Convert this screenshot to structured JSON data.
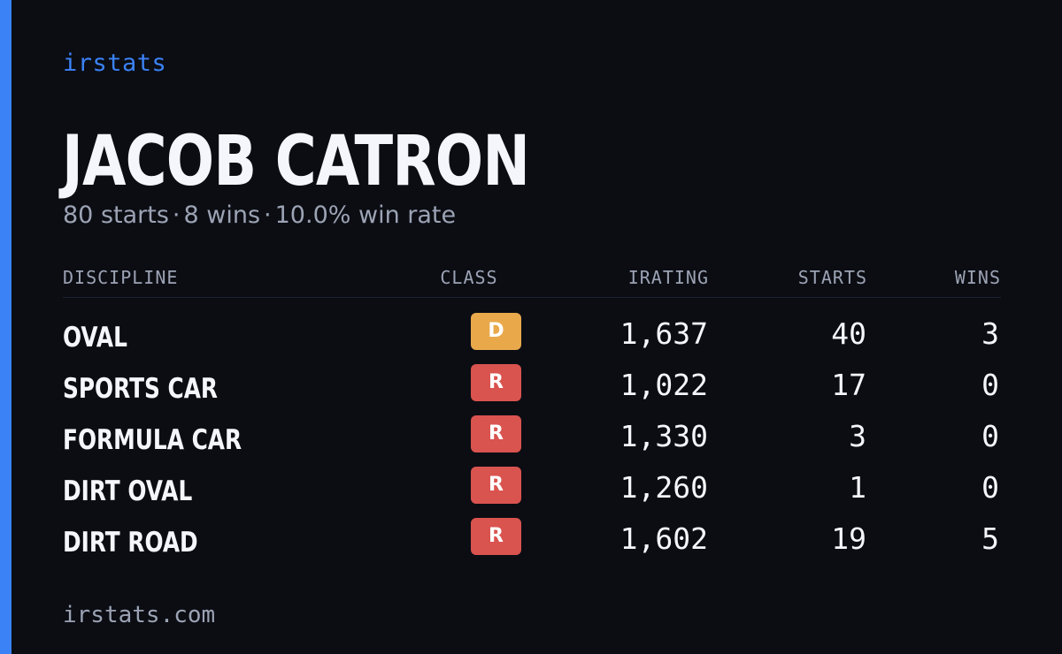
{
  "brand": "irstats",
  "driver": {
    "name": "JACOB CATRON"
  },
  "summary": {
    "starts": "80 starts",
    "wins": "8 wins",
    "win_rate": "10.0% win rate",
    "separator": "·"
  },
  "table": {
    "headers": {
      "discipline": "DISCIPLINE",
      "class": "CLASS",
      "irating": "IRATING",
      "starts": "STARTS",
      "wins": "WINS"
    },
    "rows": [
      {
        "discipline": "OVAL",
        "class": "D",
        "class_color": "#e9a94b",
        "irating": "1,637",
        "starts": "40",
        "wins": "3"
      },
      {
        "discipline": "SPORTS CAR",
        "class": "R",
        "class_color": "#d9534f",
        "irating": "1,022",
        "starts": "17",
        "wins": "0"
      },
      {
        "discipline": "FORMULA CAR",
        "class": "R",
        "class_color": "#d9534f",
        "irating": "1,330",
        "starts": "3",
        "wins": "0"
      },
      {
        "discipline": "DIRT OVAL",
        "class": "R",
        "class_color": "#d9534f",
        "irating": "1,260",
        "starts": "1",
        "wins": "0"
      },
      {
        "discipline": "DIRT ROAD",
        "class": "R",
        "class_color": "#d9534f",
        "irating": "1,602",
        "starts": "19",
        "wins": "5"
      }
    ]
  },
  "footer": "irstats.com",
  "colors": {
    "background": "#0b0d13",
    "accent": "#3b82f6",
    "muted_text": "#9ca3b4"
  }
}
